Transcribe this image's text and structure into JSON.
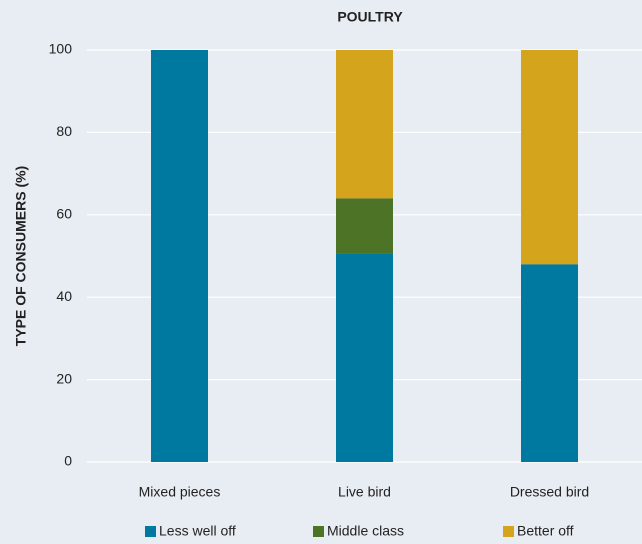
{
  "chart_data": {
    "type": "stacked_bar",
    "title": "POULTRY",
    "y_label": "TYPE OF CONSUMERS (%)",
    "categories": [
      "Mixed pieces",
      "Live bird",
      "Dressed bird"
    ],
    "series": [
      {
        "name": "Less well off",
        "color": "#0079a0",
        "values": [
          100,
          50.5,
          48
        ]
      },
      {
        "name": "Middle class",
        "color": "#4d7327",
        "values": [
          0,
          13.5,
          0
        ]
      },
      {
        "name": "Better off",
        "color": "#d4a51c",
        "values": [
          0,
          36,
          52
        ]
      }
    ],
    "ylim": [
      0,
      100
    ],
    "yticks": [
      0,
      20,
      40,
      60,
      80,
      100
    ],
    "grid": true
  }
}
